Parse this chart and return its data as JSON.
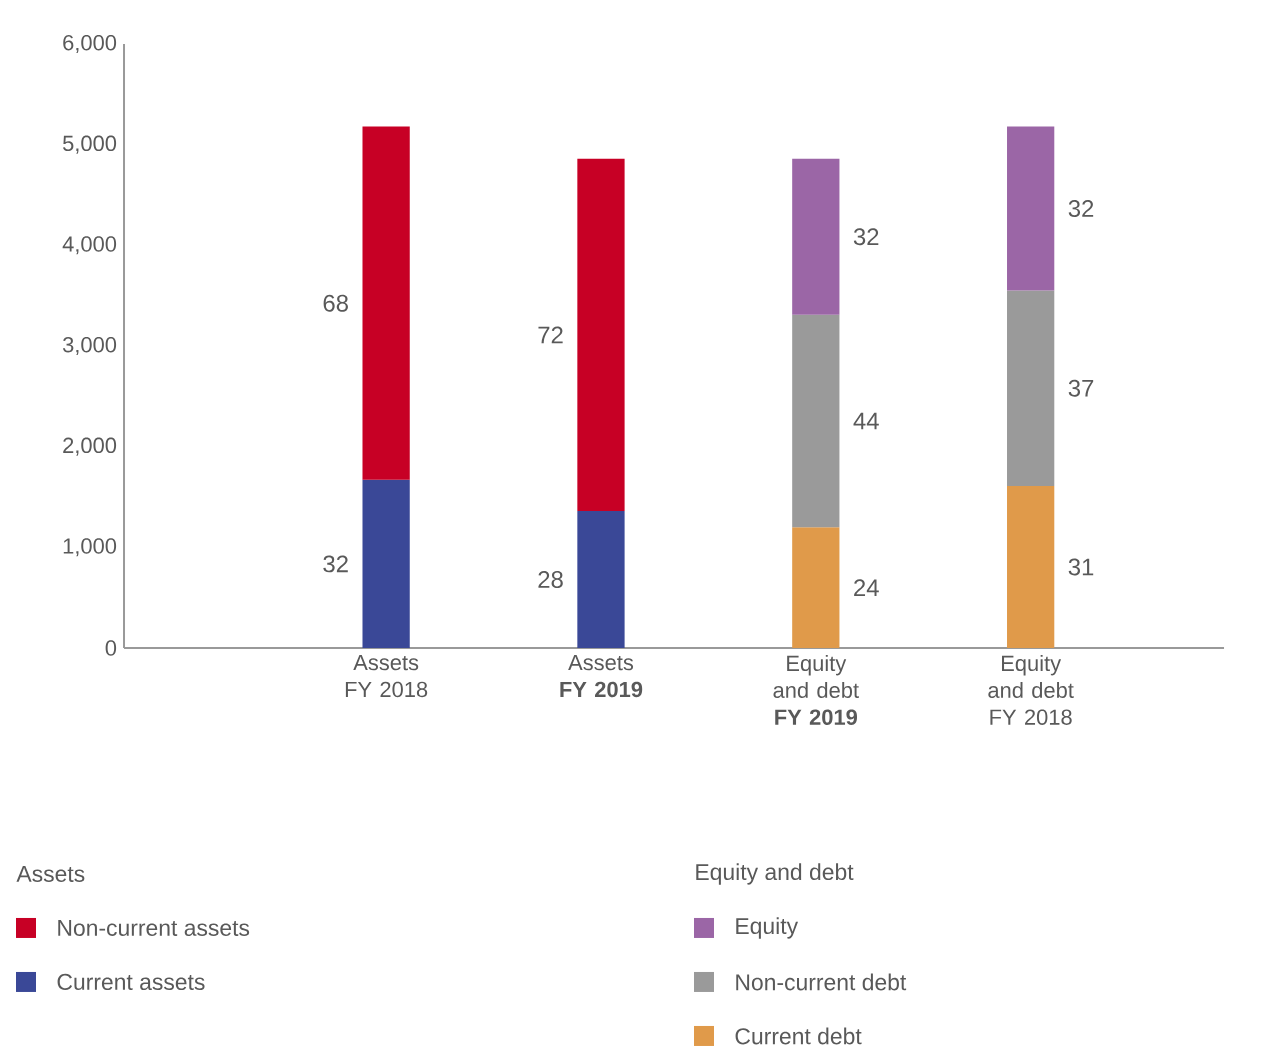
{
  "chart_data": {
    "type": "bar",
    "stacked": true,
    "categories": [
      "Assets FY 2018",
      "Assets **FY 2019**",
      "Equity and debt **FY 2019**",
      "Equity and debt FY 2018"
    ],
    "series": [
      {
        "name": "Current assets",
        "color": "#3a4897",
        "values": [
          1670,
          1360,
          null,
          null
        ]
      },
      {
        "name": "Non-current assets",
        "color": "#c70025",
        "values": [
          3510,
          3500,
          null,
          null
        ]
      },
      {
        "name": "Current debt",
        "color": "#e09a4a",
        "values": [
          null,
          null,
          1200,
          1610
        ]
      },
      {
        "name": "Non-current debt",
        "color": "#9a9a9a",
        "values": [
          null,
          null,
          2110,
          1940
        ]
      },
      {
        "name": "Equity",
        "color": "#9b66a6",
        "values": [
          null,
          null,
          1550,
          1630
        ]
      }
    ],
    "ylim": [
      0,
      6000
    ],
    "yticks": [
      {
        "value": 0,
        "label": "0"
      },
      {
        "value": 1000,
        "label": "1,000"
      },
      {
        "value": 2000,
        "label": "2,000"
      },
      {
        "value": 3000,
        "label": "3,000"
      },
      {
        "value": 4000,
        "label": "4,000"
      },
      {
        "value": 5000,
        "label": "5,000"
      },
      {
        "value": 6000,
        "label": "6,000"
      }
    ],
    "grid": false,
    "legend": "bottom",
    "annotations": [
      "Assets",
      "Equity and debt",
      "32",
      "28",
      "68",
      "72",
      "24",
      "31",
      "44",
      "37",
      "32",
      "32"
    ]
  }
}
